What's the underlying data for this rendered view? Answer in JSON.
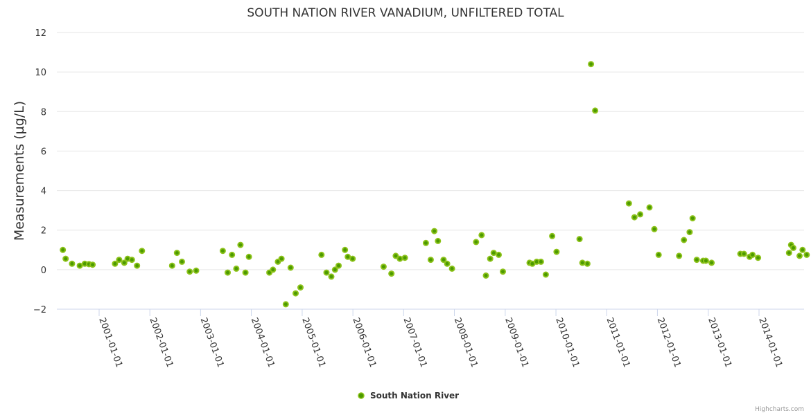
{
  "chart_data": {
    "type": "scatter",
    "title": "SOUTH NATION RIVER VANADIUM, UNFILTERED TOTAL",
    "xlabel": "",
    "ylabel": "Measurements (µg/L)",
    "ylim": [
      -2,
      12
    ],
    "yticks": [
      -2,
      0,
      2,
      4,
      6,
      8,
      10,
      12
    ],
    "xlim": [
      "2000-04-20",
      "2014-11-15"
    ],
    "xticks": [
      "2001-01-01",
      "2002-01-01",
      "2003-01-01",
      "2004-01-01",
      "2005-01-01",
      "2006-01-01",
      "2007-01-01",
      "2008-01-01",
      "2009-01-01",
      "2010-01-01",
      "2011-01-01",
      "2012-01-01",
      "2013-01-01",
      "2014-01-01"
    ],
    "grid": true,
    "legend_position": "bottom-center",
    "credits": "Highcharts.com",
    "colors": {
      "marker_fill": "#4c9a00",
      "marker_stroke": "#8cc21a",
      "grid": "#e6e6e6",
      "axis": "#ccd6eb"
    },
    "series": [
      {
        "name": "South Nation River",
        "points": [
          [
            "2000-04-15",
            1.0
          ],
          [
            "2000-05-05",
            0.55
          ],
          [
            "2000-06-20",
            0.3
          ],
          [
            "2000-08-15",
            0.2
          ],
          [
            "2000-09-20",
            0.3
          ],
          [
            "2000-10-20",
            0.28
          ],
          [
            "2000-11-15",
            0.25
          ],
          [
            "2001-04-25",
            0.3
          ],
          [
            "2001-05-25",
            0.5
          ],
          [
            "2001-07-01",
            0.35
          ],
          [
            "2001-07-25",
            0.55
          ],
          [
            "2001-08-25",
            0.5
          ],
          [
            "2001-10-01",
            0.2
          ],
          [
            "2001-11-05",
            0.95
          ],
          [
            "2002-06-10",
            0.2
          ],
          [
            "2002-07-15",
            0.85
          ],
          [
            "2002-08-20",
            0.4
          ],
          [
            "2002-10-15",
            -0.1
          ],
          [
            "2002-11-30",
            -0.05
          ],
          [
            "2003-06-10",
            0.95
          ],
          [
            "2003-07-15",
            -0.15
          ],
          [
            "2003-08-15",
            0.75
          ],
          [
            "2003-09-15",
            0.05
          ],
          [
            "2003-10-15",
            1.25
          ],
          [
            "2003-11-20",
            -0.15
          ],
          [
            "2003-12-15",
            0.65
          ],
          [
            "2004-05-10",
            -0.15
          ],
          [
            "2004-06-05",
            0.0
          ],
          [
            "2004-07-10",
            0.4
          ],
          [
            "2004-08-05",
            0.55
          ],
          [
            "2004-09-05",
            -1.75
          ],
          [
            "2004-10-10",
            0.1
          ],
          [
            "2004-11-15",
            -1.2
          ],
          [
            "2004-12-20",
            -0.9
          ],
          [
            "2005-05-20",
            0.75
          ],
          [
            "2005-06-25",
            -0.15
          ],
          [
            "2005-07-30",
            -0.35
          ],
          [
            "2005-08-25",
            0.0
          ],
          [
            "2005-09-20",
            0.2
          ],
          [
            "2005-11-05",
            1.0
          ],
          [
            "2005-11-25",
            0.65
          ],
          [
            "2005-12-30",
            0.55
          ],
          [
            "2006-08-10",
            0.15
          ],
          [
            "2006-10-05",
            -0.2
          ],
          [
            "2006-11-05",
            0.7
          ],
          [
            "2006-12-05",
            0.55
          ],
          [
            "2007-01-10",
            0.6
          ],
          [
            "2007-06-10",
            1.35
          ],
          [
            "2007-07-15",
            0.5
          ],
          [
            "2007-08-10",
            1.95
          ],
          [
            "2007-09-05",
            1.45
          ],
          [
            "2007-10-15",
            0.5
          ],
          [
            "2007-11-10",
            0.3
          ],
          [
            "2007-12-15",
            0.05
          ],
          [
            "2008-06-05",
            1.4
          ],
          [
            "2008-07-15",
            1.75
          ],
          [
            "2008-08-15",
            -0.3
          ],
          [
            "2008-09-15",
            0.55
          ],
          [
            "2008-10-10",
            0.85
          ],
          [
            "2008-11-15",
            0.75
          ],
          [
            "2008-12-15",
            -0.1
          ],
          [
            "2009-06-25",
            0.35
          ],
          [
            "2009-07-15",
            0.3
          ],
          [
            "2009-08-15",
            0.4
          ],
          [
            "2009-09-15",
            0.4
          ],
          [
            "2009-10-20",
            -0.25
          ],
          [
            "2009-12-05",
            1.7
          ],
          [
            "2010-01-05",
            0.9
          ],
          [
            "2010-06-20",
            1.55
          ],
          [
            "2010-07-10",
            0.35
          ],
          [
            "2010-08-15",
            0.3
          ],
          [
            "2010-09-10",
            10.4
          ],
          [
            "2010-10-10",
            8.05
          ],
          [
            "2011-06-10",
            3.35
          ],
          [
            "2011-07-20",
            2.65
          ],
          [
            "2011-08-30",
            2.8
          ],
          [
            "2011-11-05",
            3.15
          ],
          [
            "2011-12-10",
            2.05
          ],
          [
            "2012-01-10",
            0.75
          ],
          [
            "2012-06-05",
            0.7
          ],
          [
            "2012-07-10",
            1.5
          ],
          [
            "2012-08-20",
            1.9
          ],
          [
            "2012-09-10",
            2.6
          ],
          [
            "2012-10-10",
            0.5
          ],
          [
            "2012-11-25",
            0.45
          ],
          [
            "2012-12-15",
            0.45
          ],
          [
            "2013-01-25",
            0.35
          ],
          [
            "2013-08-20",
            0.8
          ],
          [
            "2013-09-15",
            0.8
          ],
          [
            "2013-10-25",
            0.65
          ],
          [
            "2013-11-15",
            0.75
          ],
          [
            "2013-12-25",
            0.6
          ],
          [
            "2014-08-05",
            0.85
          ],
          [
            "2014-08-20",
            1.25
          ],
          [
            "2014-09-05",
            1.1
          ],
          [
            "2014-10-20",
            0.7
          ],
          [
            "2014-11-10",
            1.0
          ],
          [
            "2014-12-10",
            0.75
          ]
        ]
      }
    ]
  }
}
